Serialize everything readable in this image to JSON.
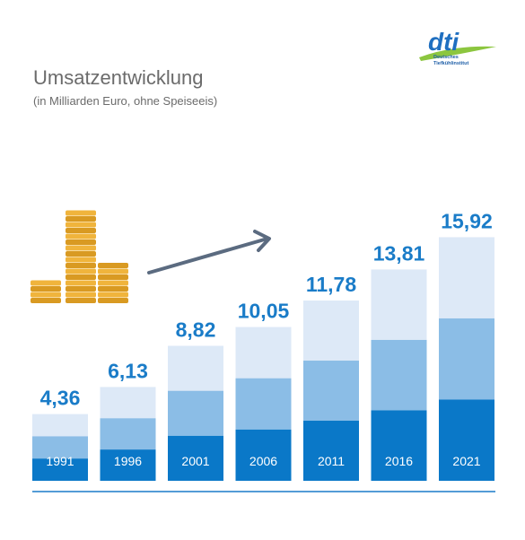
{
  "logo": {
    "mark": "dti",
    "line1": "Deutsches",
    "line2": "Tiefkühlinstitut",
    "colors": {
      "blue": "#1f6fc0",
      "green": "#8cc63f"
    }
  },
  "chart_data": {
    "type": "bar",
    "title": "Umsatzentwicklung",
    "subtitle": "(in Milliarden Euro, ohne Speiseeis)",
    "categories": [
      "1991",
      "1996",
      "2001",
      "2006",
      "2011",
      "2016",
      "2021"
    ],
    "values": [
      4.36,
      6.13,
      8.82,
      10.05,
      11.78,
      13.81,
      15.92
    ],
    "value_labels": [
      "4,36",
      "6,13",
      "8,82",
      "10,05",
      "11,78",
      "13,81",
      "15,92"
    ],
    "ylim": [
      0,
      17
    ],
    "grid": false,
    "legend": "none",
    "colors": {
      "bar_dark": "#0a78c8",
      "bar_mid": "#8bbde6",
      "bar_light": "#dde9f7",
      "value_text": "#1a7cc8",
      "baseline": "#1a7cc8",
      "arrow": "#5b6b80",
      "coins": "#f0b43c",
      "coins_shade": "#d99a22"
    },
    "decorations": [
      "coin-stacks-icon",
      "upward-trend-arrow-icon"
    ]
  }
}
